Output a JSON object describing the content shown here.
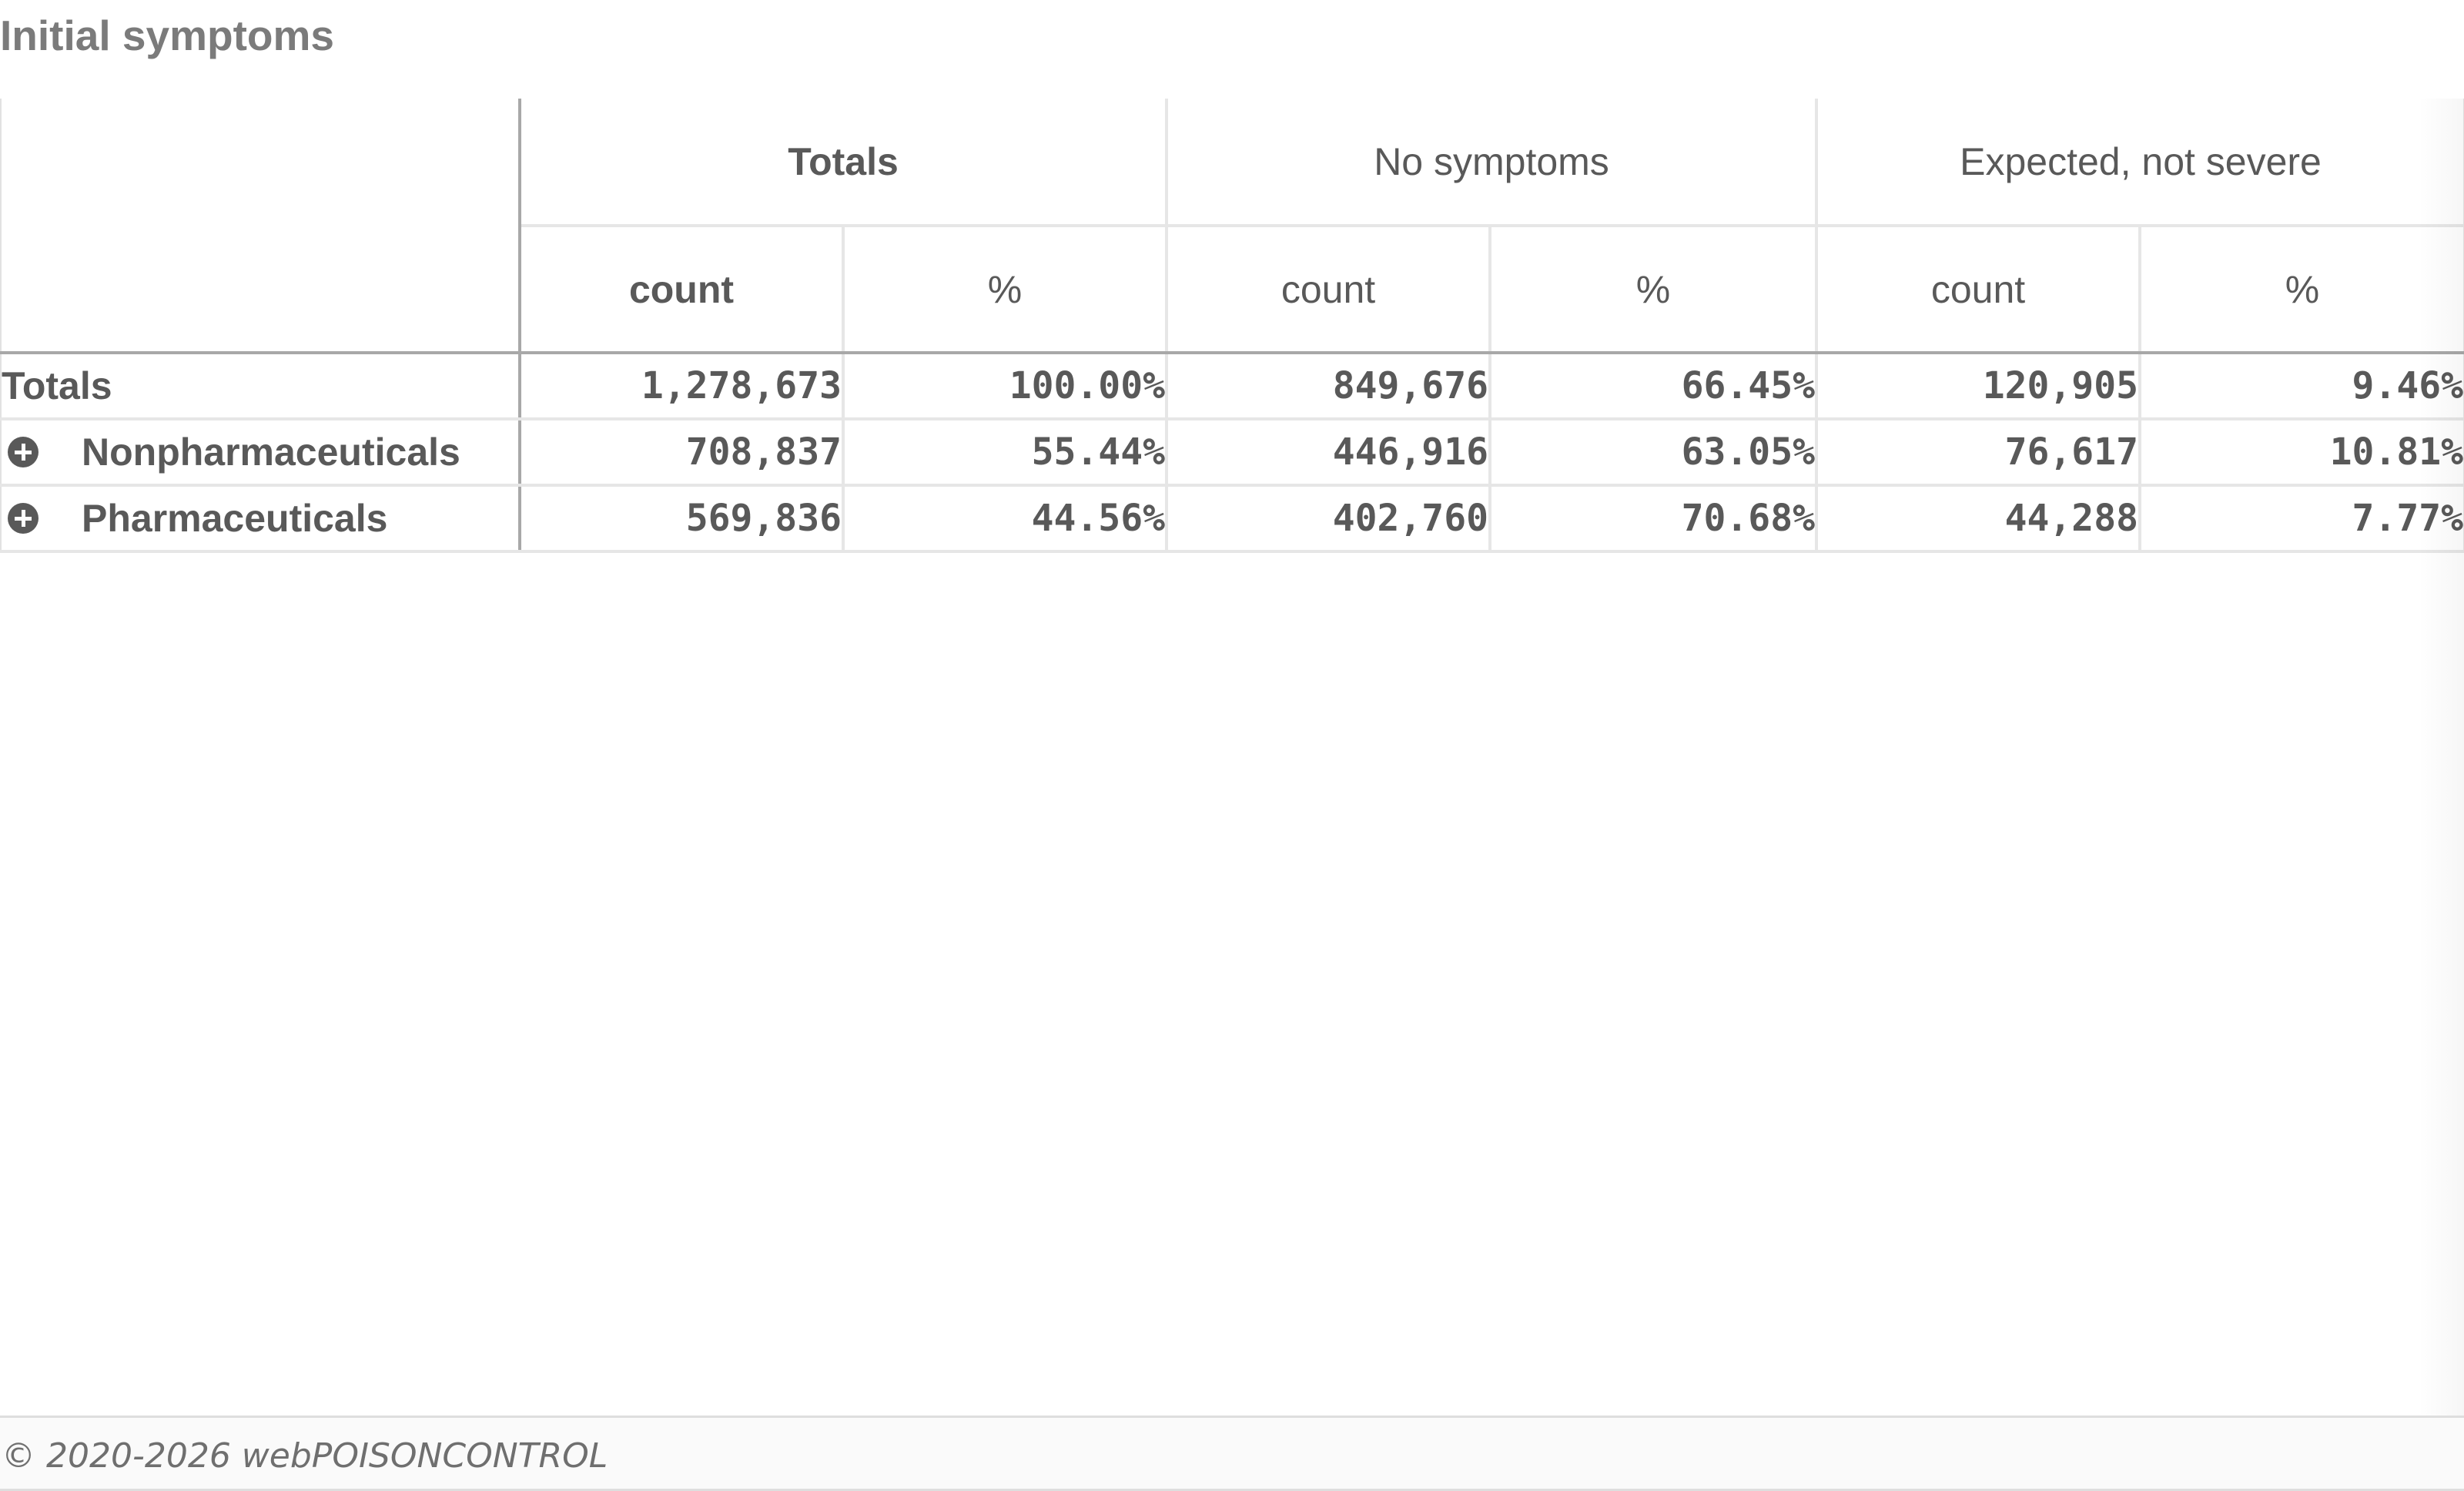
{
  "title": "Initial symptoms",
  "table": {
    "groups": [
      {
        "label": "Totals",
        "bold": true
      },
      {
        "label": "No symptoms",
        "bold": false
      },
      {
        "label": "Expected, not severe",
        "bold": false
      }
    ],
    "sub_headers": [
      "count",
      "%"
    ],
    "rows": [
      {
        "label": "Totals",
        "expandable": false,
        "values": [
          "1,278,673",
          "100.00%",
          "849,676",
          "66.45%",
          "120,905",
          "9.46%"
        ]
      },
      {
        "label": "Nonpharmaceuticals",
        "expandable": true,
        "values": [
          "708,837",
          "55.44%",
          "446,916",
          "63.05%",
          "76,617",
          "10.81%"
        ]
      },
      {
        "label": "Pharmaceuticals",
        "expandable": true,
        "values": [
          "569,836",
          "44.56%",
          "402,760",
          "70.68%",
          "44,288",
          "7.77%"
        ]
      }
    ]
  },
  "icons": {
    "expand": "plus-circle-icon"
  },
  "footer": {
    "text": "© 2020-2026 webPOISONCONTROL"
  }
}
